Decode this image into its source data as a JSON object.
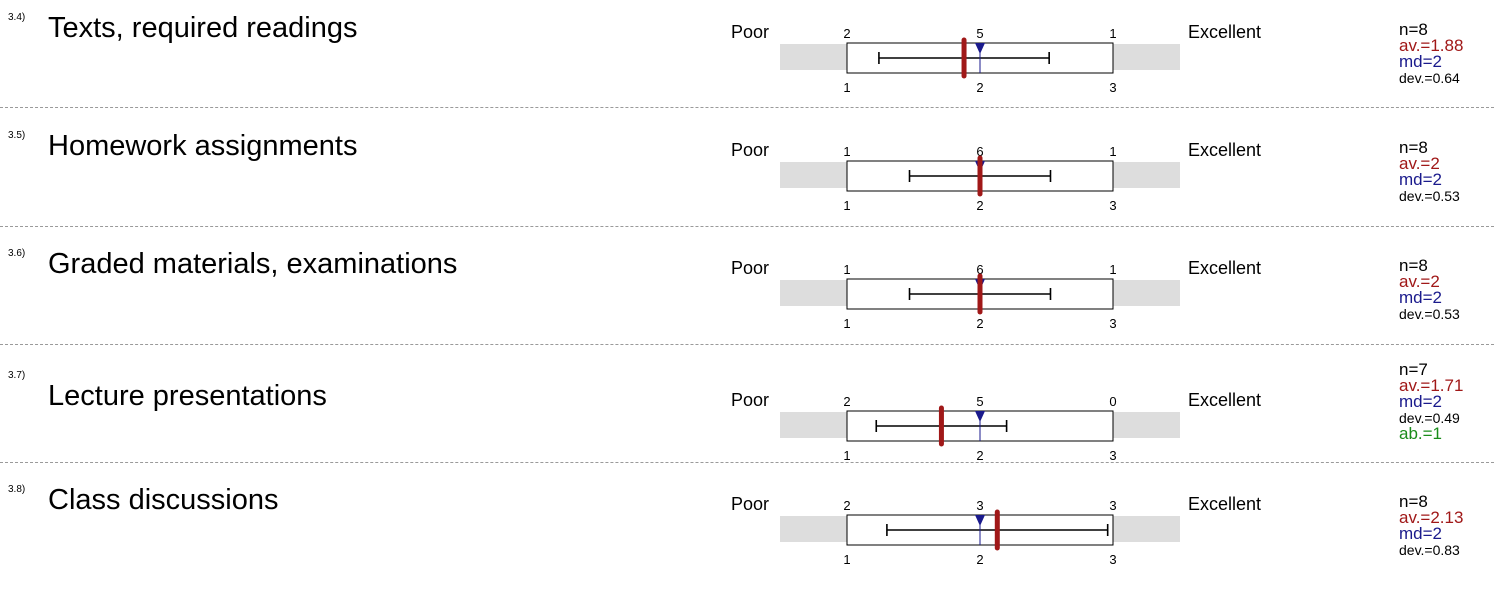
{
  "chart_data": [
    {
      "type": "box",
      "number": "3.4)",
      "question": "Texts, required readings",
      "left_label": "Poor",
      "right_label": "Excellent",
      "scale": [
        1,
        2,
        3
      ],
      "counts": [
        2,
        5,
        1
      ],
      "mean": 1.88,
      "median": 2,
      "whisker_low": 1.24,
      "whisker_high": 2.52,
      "stats": {
        "n": "n=8",
        "av": "av.=1.88",
        "md": "md=2",
        "dev": "dev.=0.64"
      }
    },
    {
      "type": "box",
      "number": "3.5)",
      "question": "Homework assignments",
      "left_label": "Poor",
      "right_label": "Excellent",
      "scale": [
        1,
        2,
        3
      ],
      "counts": [
        1,
        6,
        1
      ],
      "mean": 2,
      "median": 2,
      "whisker_low": 1.47,
      "whisker_high": 2.53,
      "stats": {
        "n": "n=8",
        "av": "av.=2",
        "md": "md=2",
        "dev": "dev.=0.53"
      }
    },
    {
      "type": "box",
      "number": "3.6)",
      "question": "Graded materials, examinations",
      "left_label": "Poor",
      "right_label": "Excellent",
      "scale": [
        1,
        2,
        3
      ],
      "counts": [
        1,
        6,
        1
      ],
      "mean": 2,
      "median": 2,
      "whisker_low": 1.47,
      "whisker_high": 2.53,
      "stats": {
        "n": "n=8",
        "av": "av.=2",
        "md": "md=2",
        "dev": "dev.=0.53"
      }
    },
    {
      "type": "box",
      "number": "3.7)",
      "question": "Lecture presentations",
      "left_label": "Poor",
      "right_label": "Excellent",
      "scale": [
        1,
        2,
        3
      ],
      "counts": [
        2,
        5,
        0
      ],
      "mean": 1.71,
      "median": 2,
      "whisker_low": 1.22,
      "whisker_high": 2.2,
      "stats": {
        "n": "n=7",
        "av": "av.=1.71",
        "md": "md=2",
        "dev": "dev.=0.49",
        "ab": "ab.=1"
      }
    },
    {
      "type": "box",
      "number": "3.8)",
      "question": "Class discussions",
      "left_label": "Poor",
      "right_label": "Excellent",
      "scale": [
        1,
        2,
        3
      ],
      "counts": [
        2,
        3,
        3
      ],
      "mean": 2.13,
      "median": 2,
      "whisker_low": 1.3,
      "whisker_high": 2.96,
      "stats": {
        "n": "n=8",
        "av": "av.=2.13",
        "md": "md=2",
        "dev": "dev.=0.83"
      }
    }
  ],
  "colors": {
    "mean": "#a01818",
    "median": "#1a1a8c",
    "abstain": "#1a8c1a",
    "band": "#dddddd"
  }
}
